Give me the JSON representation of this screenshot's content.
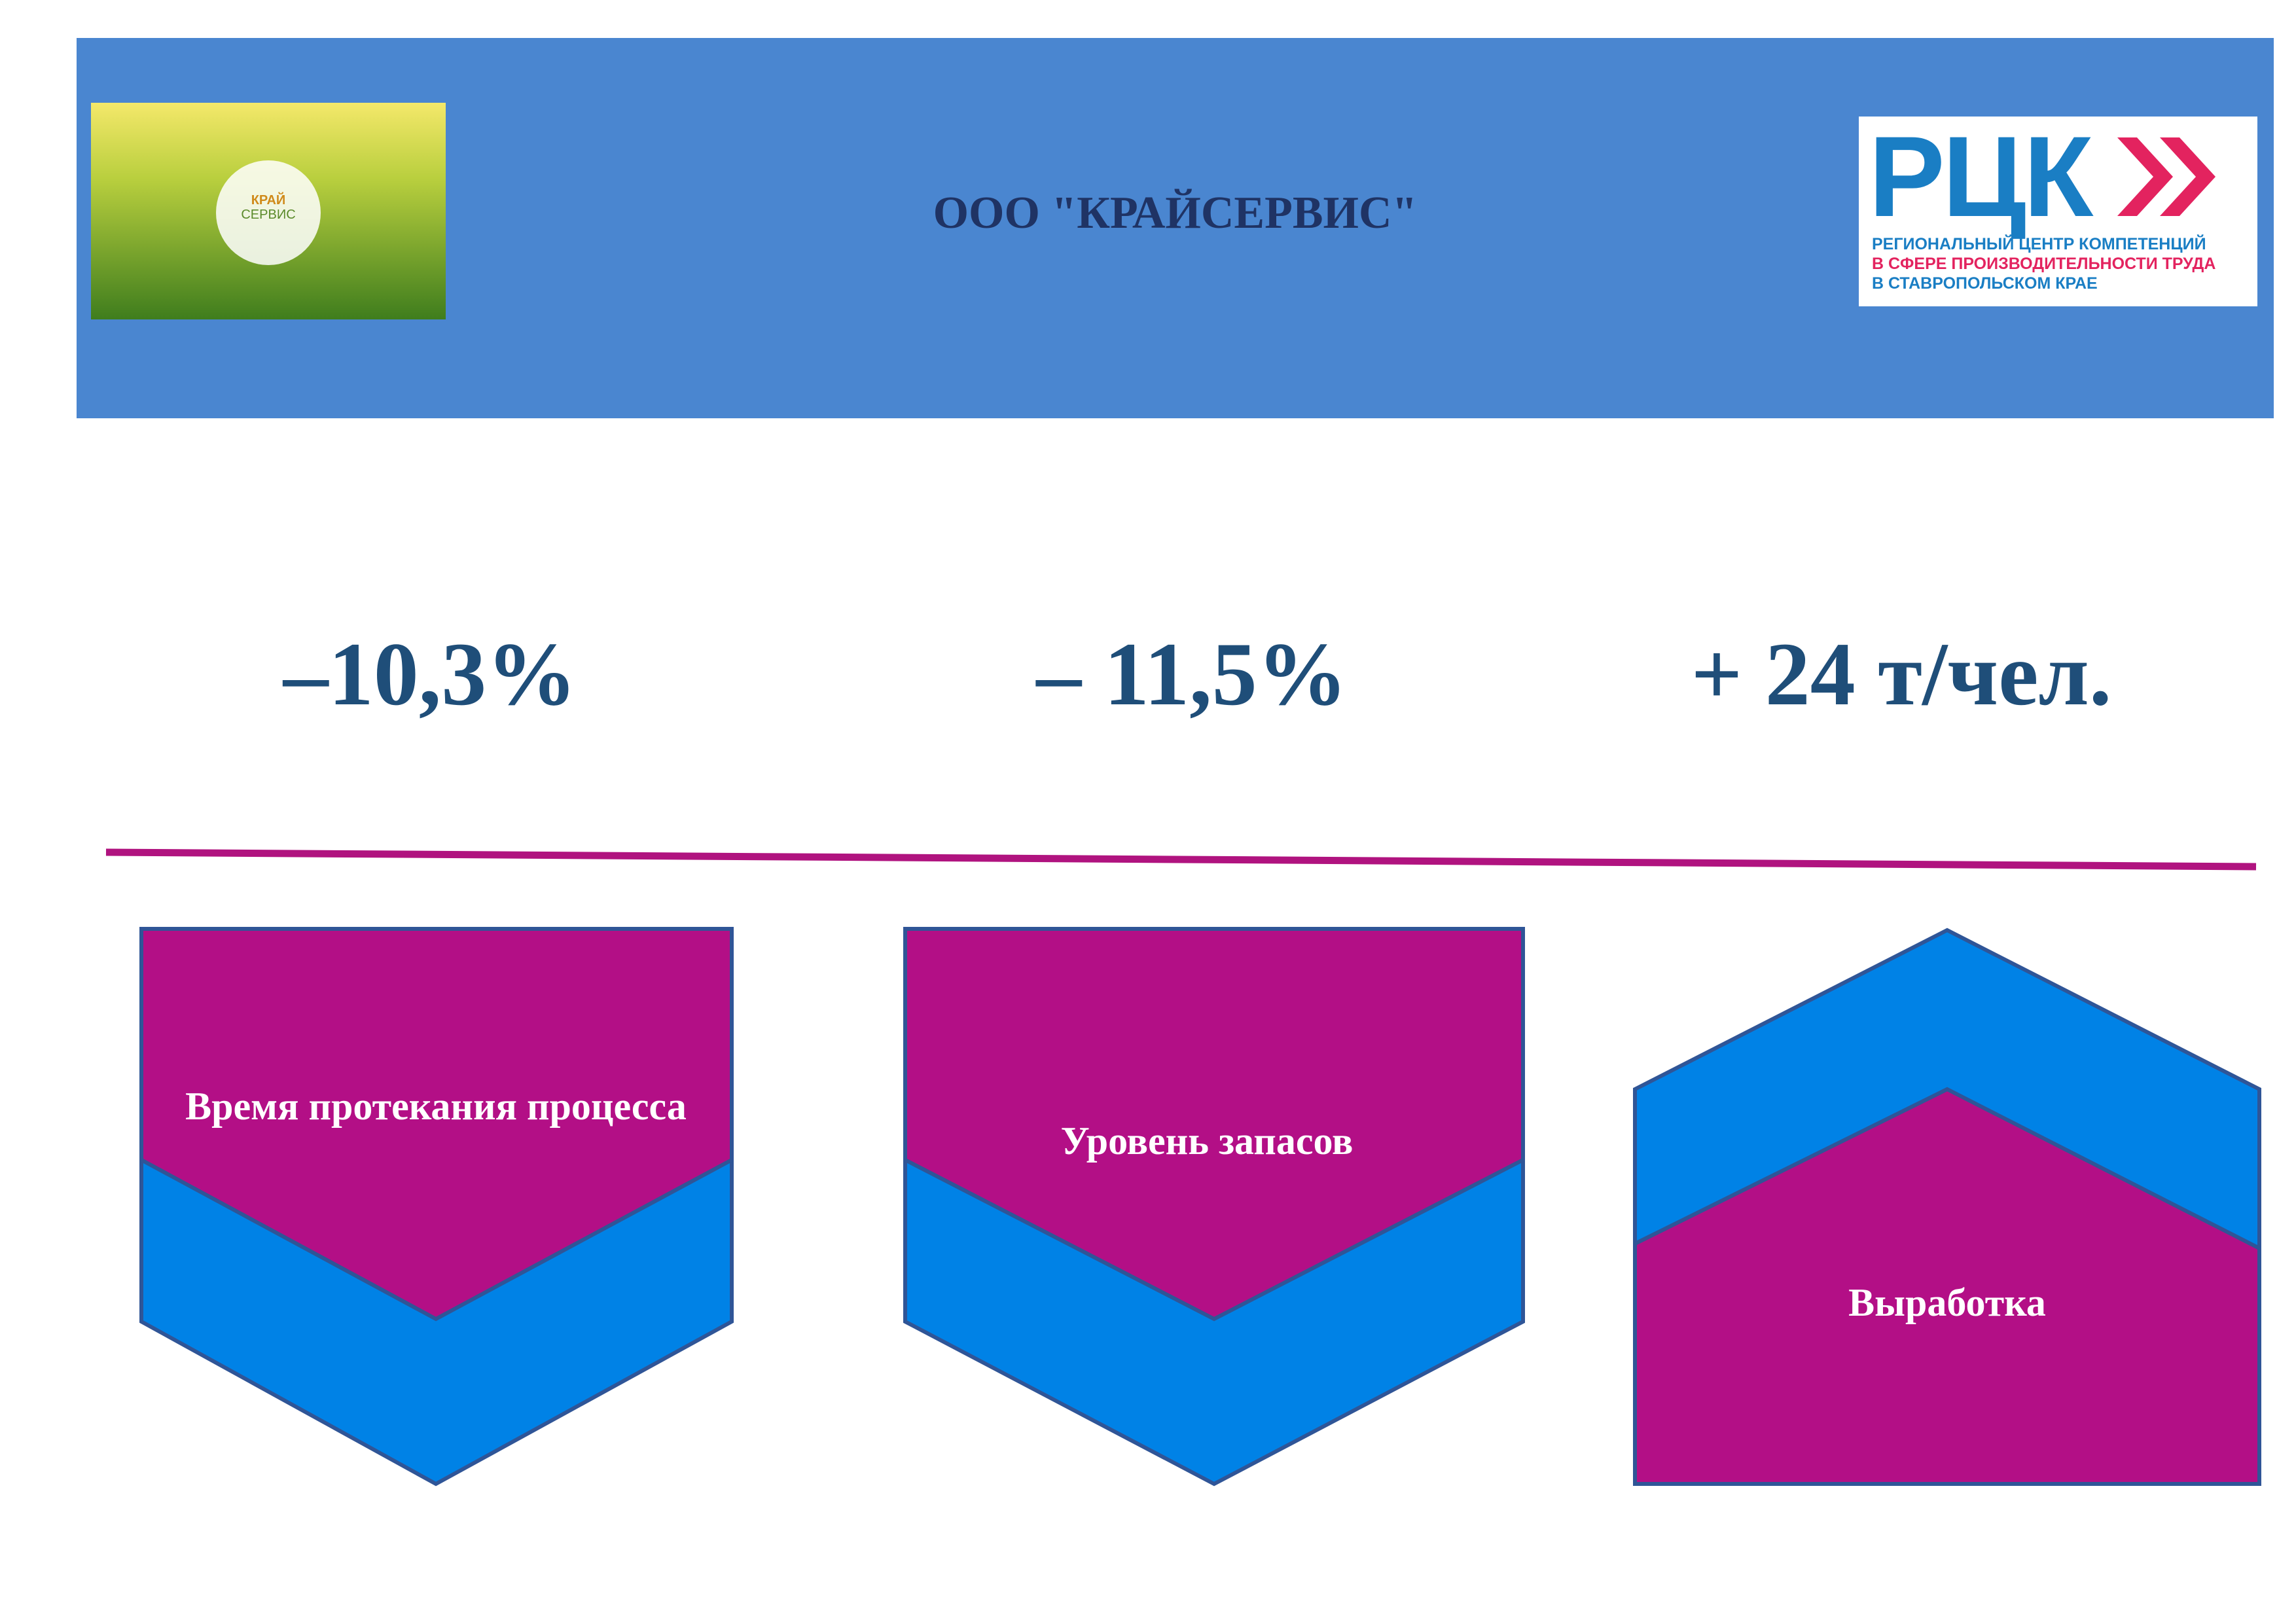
{
  "header": {
    "title": "ООО \"КРАЙСЕРВИС\"",
    "left_logo": {
      "line1": "КРАЙ",
      "line2": "СЕРВИС"
    },
    "right_logo": {
      "mark": "РЦК",
      "lines": [
        "РЕГИОНАЛЬНЫЙ ЦЕНТР КОМПЕТЕНЦИЙ",
        "В СФЕРЕ ПРОИЗВОДИТЕЛЬНОСТИ ТРУДА",
        "В СТАВРОПОЛЬСКОМ КРАЕ"
      ]
    }
  },
  "metrics": [
    {
      "value": "–10,3%",
      "label": "Время протекания процесса"
    },
    {
      "value": "– 11,5%",
      "label": "Уровень запасов"
    },
    {
      "value": "+ 24 т/чел.",
      "label": "Выработка"
    }
  ]
}
